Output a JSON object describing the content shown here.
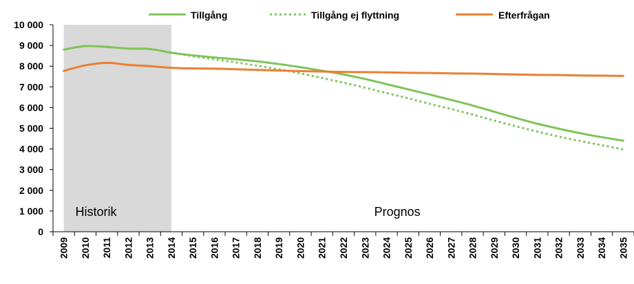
{
  "chart_data": {
    "type": "line",
    "x": [
      2009,
      2010,
      2011,
      2012,
      2013,
      2014,
      2015,
      2016,
      2017,
      2018,
      2019,
      2020,
      2021,
      2022,
      2023,
      2024,
      2025,
      2026,
      2027,
      2028,
      2029,
      2030,
      2031,
      2032,
      2033,
      2034,
      2035
    ],
    "ylim": [
      0,
      10000
    ],
    "yticks": [
      0,
      1000,
      2000,
      3000,
      4000,
      5000,
      6000,
      7000,
      8000,
      9000,
      10000
    ],
    "ytick_labels": [
      "0",
      "1 000",
      "2 000",
      "3 000",
      "4 000",
      "5 000",
      "6 000",
      "7 000",
      "8 000",
      "9 000",
      "10 000"
    ],
    "grid": false,
    "legend_position": "top",
    "series": [
      {
        "name": "Tillgång",
        "color": "#7dc45a",
        "style": "solid",
        "values": [
          8800,
          8970,
          8930,
          8850,
          8830,
          8650,
          8520,
          8420,
          8330,
          8230,
          8100,
          7950,
          7780,
          7600,
          7380,
          7130,
          6880,
          6630,
          6370,
          6100,
          5800,
          5500,
          5220,
          4980,
          4760,
          4570,
          4400
        ]
      },
      {
        "name": "Tillgång ej flyttning",
        "color": "#7dc45a",
        "style": "dotted",
        "values": [
          8800,
          8970,
          8930,
          8850,
          8830,
          8650,
          8480,
          8330,
          8180,
          8020,
          7850,
          7650,
          7430,
          7200,
          6960,
          6700,
          6450,
          6180,
          5930,
          5660,
          5370,
          5100,
          4840,
          4600,
          4380,
          4180,
          3980
        ]
      },
      {
        "name": "Efterfrågan",
        "color": "#ed7d31",
        "style": "solid",
        "values": [
          7770,
          8040,
          8160,
          8060,
          8000,
          7920,
          7890,
          7880,
          7850,
          7820,
          7790,
          7760,
          7740,
          7720,
          7710,
          7700,
          7680,
          7670,
          7650,
          7640,
          7620,
          7600,
          7580,
          7570,
          7550,
          7540,
          7530
        ]
      }
    ],
    "shaded_region": {
      "from": 2009,
      "to": 2014,
      "color": "#d9d9d9"
    },
    "annotations": [
      {
        "text": "Historik",
        "x": 2010.5
      },
      {
        "text": "Prognos",
        "x": 2024.5
      }
    ]
  }
}
